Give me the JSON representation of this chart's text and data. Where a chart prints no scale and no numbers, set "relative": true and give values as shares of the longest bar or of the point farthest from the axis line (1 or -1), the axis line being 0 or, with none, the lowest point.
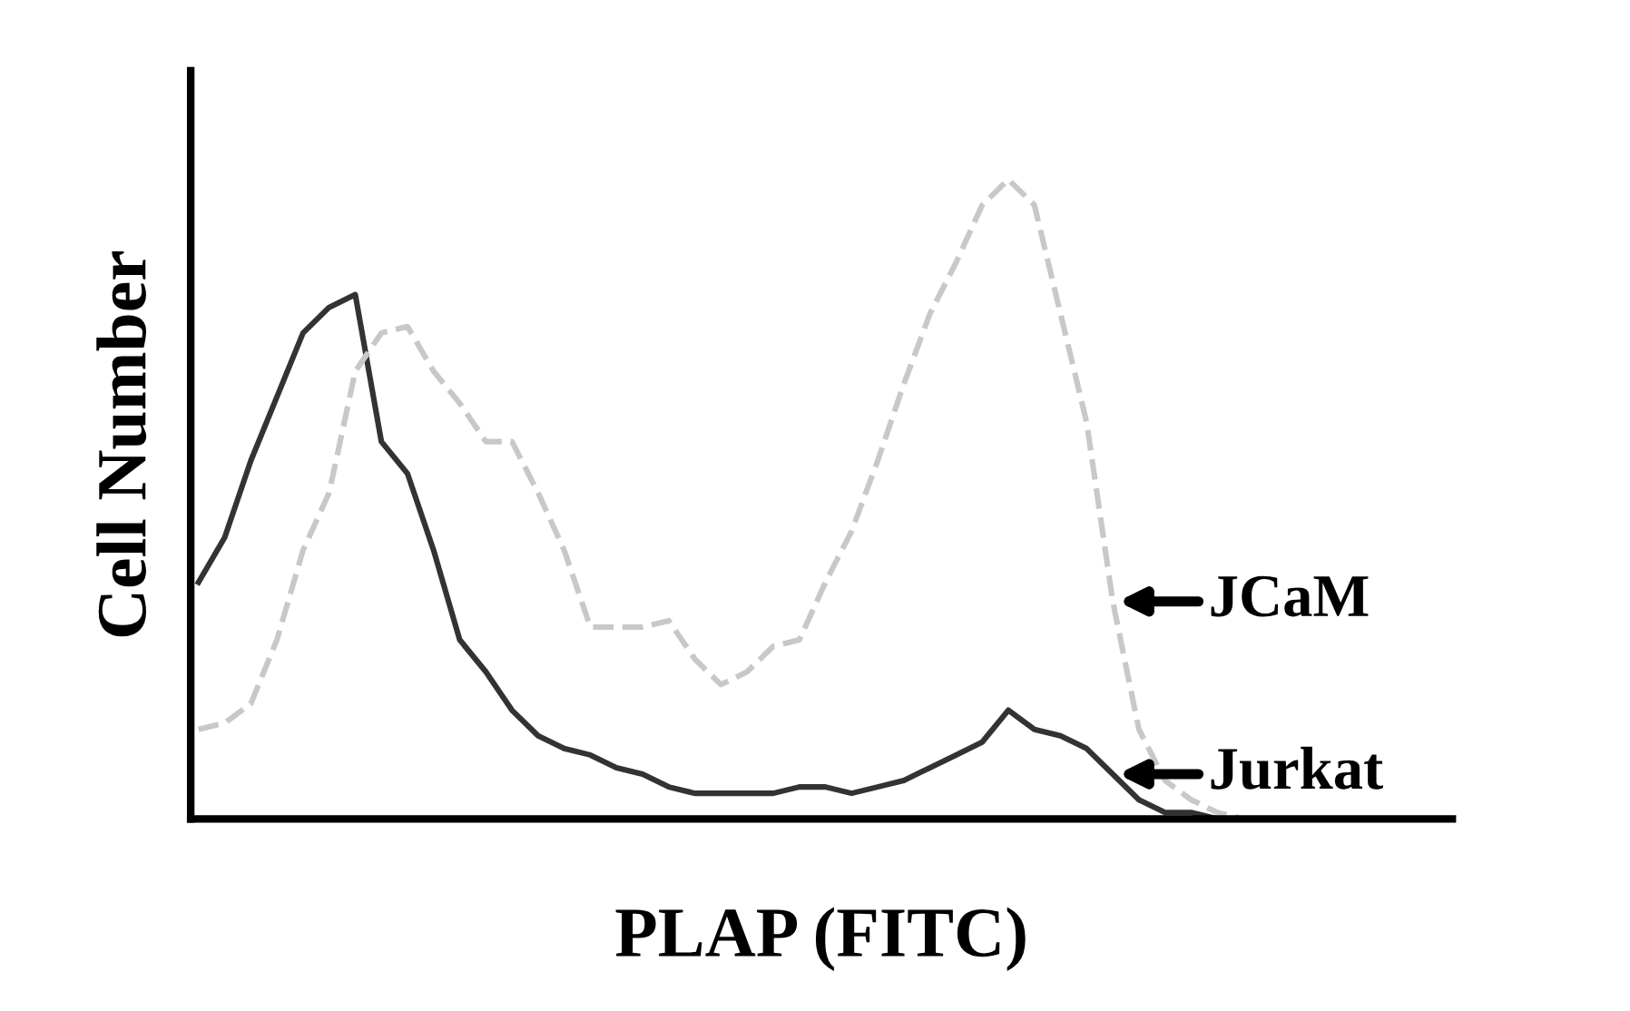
{
  "chart_data": {
    "type": "line",
    "relative": true,
    "xlabel": "PLAP (FITC)",
    "ylabel": "Cell Number",
    "legend": false,
    "categories": [
      null,
      null,
      null,
      null,
      null,
      null,
      null,
      null,
      null,
      null,
      null,
      null,
      null,
      null,
      null,
      null,
      null,
      null,
      null,
      null,
      null,
      null,
      null,
      null,
      null,
      null,
      null,
      null,
      null,
      null,
      null,
      null,
      null,
      null,
      null,
      null,
      null,
      null,
      null,
      null,
      null,
      null,
      null,
      null,
      null,
      null,
      null,
      null,
      null
    ],
    "series": [
      {
        "name": "Jurkat",
        "color": "#333333",
        "line_style": "solid",
        "values": [
          0.37,
          0.44,
          0.56,
          0.66,
          0.76,
          0.8,
          0.82,
          0.59,
          0.54,
          0.42,
          0.28,
          0.23,
          0.17,
          0.13,
          0.11,
          0.1,
          0.08,
          0.07,
          0.05,
          0.04,
          0.04,
          0.04,
          0.04,
          0.05,
          0.05,
          0.04,
          0.05,
          0.06,
          0.08,
          0.1,
          0.12,
          0.17,
          0.14,
          0.13,
          0.11,
          0.07,
          0.03,
          0.01,
          0.01,
          0,
          0,
          0,
          0,
          0,
          0,
          0,
          0,
          0,
          0
        ]
      },
      {
        "name": "JCaM",
        "color": "#c8c8c8",
        "line_style": "dashed",
        "values": [
          0.14,
          0.15,
          0.18,
          0.28,
          0.42,
          0.51,
          0.7,
          0.76,
          0.77,
          0.7,
          0.65,
          0.59,
          0.59,
          0.51,
          0.42,
          0.3,
          0.3,
          0.3,
          0.31,
          0.25,
          0.21,
          0.23,
          0.27,
          0.28,
          0.37,
          0.45,
          0.56,
          0.68,
          0.79,
          0.87,
          0.96,
          1,
          0.96,
          0.79,
          0.62,
          0.34,
          0.14,
          0.06,
          0.03,
          0.01,
          0,
          0,
          0,
          0,
          0,
          0,
          0,
          0,
          0
        ]
      }
    ]
  }
}
